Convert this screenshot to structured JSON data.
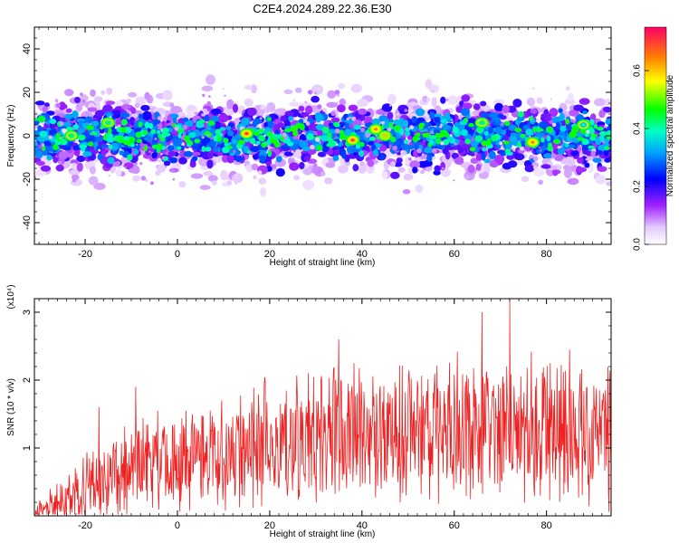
{
  "title": "C2E4.2024.289.22.36.E30",
  "chart_data": [
    {
      "type": "heatmap",
      "xlabel": "Height of straight line (km)",
      "ylabel": "Frequency (Hz)",
      "xlim": [
        -31,
        94
      ],
      "ylim": [
        -50,
        50
      ],
      "x_ticks": [
        -20,
        0,
        20,
        40,
        60,
        80
      ],
      "y_ticks": [
        -40,
        -20,
        0,
        20,
        40
      ],
      "y_tick_labels": [
        "-40",
        "-20",
        "0",
        "20",
        "40"
      ],
      "colorbar": {
        "label": "Normalized spectral amplitude",
        "range": [
          0.0,
          0.75
        ],
        "ticks": [
          0.0,
          0.2,
          0.4,
          0.6
        ],
        "tick_labels": [
          "0.0",
          "0.2",
          "0.4",
          "0.6"
        ]
      },
      "band": {
        "center_hz": 0,
        "halfwidth_hz": 12
      },
      "hot_spots": [
        {
          "x": 15,
          "y": 1,
          "v": 0.7
        },
        {
          "x": 38,
          "y": -2,
          "v": 0.7
        },
        {
          "x": 43,
          "y": 3,
          "v": 0.65
        },
        {
          "x": 45,
          "y": 0,
          "v": 0.6
        },
        {
          "x": 77,
          "y": -3,
          "v": 0.65
        },
        {
          "x": -23,
          "y": 0,
          "v": 0.45
        },
        {
          "x": -15,
          "y": 6,
          "v": 0.45
        },
        {
          "x": 66,
          "y": 6,
          "v": 0.45
        },
        {
          "x": 88,
          "y": 5,
          "v": 0.4
        }
      ]
    },
    {
      "type": "line",
      "xlabel": "Height of straight line (km)",
      "ylabel": "SNR (10 * v/v)",
      "scale_label": "(x10⁴)",
      "xlim": [
        -31,
        94
      ],
      "ylim": [
        0,
        3.2
      ],
      "x_ticks": [
        -20,
        0,
        20,
        40,
        60,
        80
      ],
      "y_ticks": [
        1,
        2,
        3
      ],
      "y_tick_labels": [
        "1",
        "2",
        "3"
      ],
      "series": [
        {
          "color": "#ee2222",
          "trend_points": [
            {
              "x": -31,
              "mean": 0.05,
              "amp": 0.12
            },
            {
              "x": -26,
              "mean": 0.15,
              "amp": 0.35
            },
            {
              "x": -18,
              "mean": 0.4,
              "amp": 0.55
            },
            {
              "x": -8,
              "mean": 0.7,
              "amp": 0.7
            },
            {
              "x": 10,
              "mean": 0.95,
              "amp": 0.8
            },
            {
              "x": 30,
              "mean": 1.15,
              "amp": 0.95
            },
            {
              "x": 50,
              "mean": 1.3,
              "amp": 1.0
            },
            {
              "x": 70,
              "mean": 1.3,
              "amp": 1.1
            },
            {
              "x": 94,
              "mean": 1.2,
              "amp": 1.05
            }
          ],
          "peaks": [
            {
              "x": 35,
              "y": 2.6
            },
            {
              "x": 66,
              "y": 3.0
            },
            {
              "x": 72,
              "y": 3.2
            },
            {
              "x": 85,
              "y": 2.45
            },
            {
              "x": -9,
              "y": 1.9
            },
            {
              "x": -17,
              "y": 1.6
            }
          ]
        }
      ]
    }
  ]
}
